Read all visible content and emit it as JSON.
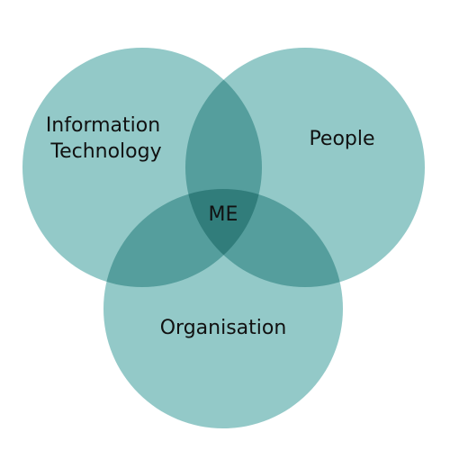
{
  "diagram": {
    "type": "venn",
    "circle_color": "#93c9c8",
    "label_color": "#111111",
    "sets": [
      {
        "id": "information-technology",
        "label_lines": [
          "Information",
          "Technology"
        ]
      },
      {
        "id": "people",
        "label_lines": [
          "People"
        ]
      },
      {
        "id": "organisation",
        "label_lines": [
          "Organisation"
        ]
      }
    ],
    "center_label": "ME"
  }
}
